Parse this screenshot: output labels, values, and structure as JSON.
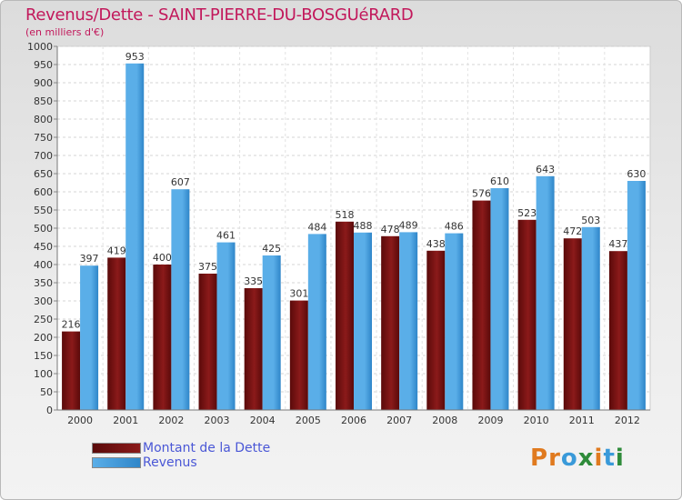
{
  "colors": {
    "dette": "#8b1a1a",
    "dette_dark": "#5a0a0a",
    "revenus": "#5aaee8",
    "revenus_dark": "#2f86c9",
    "title": "#c2185b",
    "legend_text": "#4a57d6"
  },
  "chart_data": {
    "type": "bar",
    "title": "Revenus/Dette - SAINT-PIERRE-DU-BOSGUéRARD",
    "subtitle": "(en milliers d'€)",
    "categories": [
      "2000",
      "2001",
      "2002",
      "2003",
      "2004",
      "2005",
      "2006",
      "2007",
      "2008",
      "2009",
      "2010",
      "2011",
      "2012"
    ],
    "series": [
      {
        "name": "Montant de la Dette",
        "values": [
          216,
          419,
          400,
          375,
          335,
          301,
          518,
          478,
          438,
          576,
          523,
          472,
          437
        ]
      },
      {
        "name": "Revenus",
        "values": [
          397,
          953,
          607,
          461,
          425,
          484,
          488,
          489,
          486,
          610,
          643,
          503,
          630
        ]
      }
    ],
    "ylim": [
      0,
      1000
    ],
    "ytick_step": 50,
    "grid": true,
    "legend_position": "bottom-left"
  },
  "logo": {
    "letters": [
      "P",
      "r",
      "o",
      "x",
      "i",
      "t",
      "i"
    ],
    "colors": [
      "#e07a1f",
      "#e07a1f",
      "#3a9ad9",
      "#2e8b3a",
      "#e07a1f",
      "#3a9ad9",
      "#2e8b3a"
    ]
  }
}
